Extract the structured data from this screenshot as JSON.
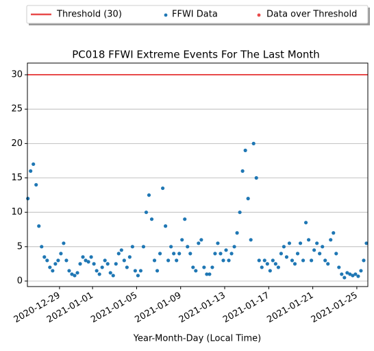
{
  "chart_data": {
    "type": "scatter",
    "title": "PC018 FFWI Extreme Events For The Last Month",
    "xlabel": "Year-Month-Day (Local Time)",
    "xlim": [
      "2020-12-26T02:00",
      "2021-01-26T00:00"
    ],
    "xticks": [
      "2020-12-29",
      "2021-01-01",
      "2021-01-05",
      "2021-01-09",
      "2021-01-13",
      "2021-01-17",
      "2021-01-21",
      "2021-01-25"
    ],
    "ylim": [
      -0.8,
      31.7
    ],
    "yticks": [
      0,
      5,
      10,
      15,
      20,
      25,
      30
    ],
    "grid": "y",
    "threshold": {
      "name": "Threshold (30)",
      "value": 30,
      "color": "#e84a4a"
    },
    "x": [
      "2020-12-26T03:00",
      "2020-12-26T09:00",
      "2020-12-26T15:00",
      "2020-12-26T21:00",
      "2020-12-27T03:00",
      "2020-12-27T09:00",
      "2020-12-27T15:00",
      "2020-12-27T21:00",
      "2020-12-28T03:00",
      "2020-12-28T09:00",
      "2020-12-28T15:00",
      "2020-12-28T21:00",
      "2020-12-29T03:00",
      "2020-12-29T09:00",
      "2020-12-29T15:00",
      "2020-12-29T21:00",
      "2020-12-30T03:00",
      "2020-12-30T09:00",
      "2020-12-30T15:00",
      "2020-12-30T21:00",
      "2020-12-31T03:00",
      "2020-12-31T09:00",
      "2020-12-31T15:00",
      "2020-12-31T21:00",
      "2021-01-01T03:00",
      "2021-01-01T09:00",
      "2021-01-01T15:00",
      "2021-01-01T21:00",
      "2021-01-02T03:00",
      "2021-01-02T09:00",
      "2021-01-02T15:00",
      "2021-01-02T21:00",
      "2021-01-03T03:00",
      "2021-01-03T09:00",
      "2021-01-03T15:00",
      "2021-01-03T21:00",
      "2021-01-04T03:00",
      "2021-01-04T09:00",
      "2021-01-04T15:00",
      "2021-01-04T21:00",
      "2021-01-05T03:00",
      "2021-01-05T09:00",
      "2021-01-05T15:00",
      "2021-01-05T21:00",
      "2021-01-06T03:00",
      "2021-01-06T09:00",
      "2021-01-06T15:00",
      "2021-01-06T21:00",
      "2021-01-07T03:00",
      "2021-01-07T09:00",
      "2021-01-07T15:00",
      "2021-01-07T21:00",
      "2021-01-08T03:00",
      "2021-01-08T09:00",
      "2021-01-08T15:00",
      "2021-01-08T21:00",
      "2021-01-09T03:00",
      "2021-01-09T09:00",
      "2021-01-09T15:00",
      "2021-01-09T21:00",
      "2021-01-10T03:00",
      "2021-01-10T09:00",
      "2021-01-10T15:00",
      "2021-01-10T21:00",
      "2021-01-11T03:00",
      "2021-01-11T09:00",
      "2021-01-11T15:00",
      "2021-01-11T21:00",
      "2021-01-12T03:00",
      "2021-01-12T09:00",
      "2021-01-12T15:00",
      "2021-01-12T21:00",
      "2021-01-13T03:00",
      "2021-01-13T09:00",
      "2021-01-13T15:00",
      "2021-01-13T21:00",
      "2021-01-14T03:00",
      "2021-01-14T09:00",
      "2021-01-14T15:00",
      "2021-01-14T21:00",
      "2021-01-15T03:00",
      "2021-01-15T09:00",
      "2021-01-15T15:00",
      "2021-01-15T21:00",
      "2021-01-16T03:00",
      "2021-01-16T09:00",
      "2021-01-16T15:00",
      "2021-01-16T21:00",
      "2021-01-17T03:00",
      "2021-01-17T09:00",
      "2021-01-17T15:00",
      "2021-01-17T21:00",
      "2021-01-18T03:00",
      "2021-01-18T09:00",
      "2021-01-18T15:00",
      "2021-01-18T21:00",
      "2021-01-19T03:00",
      "2021-01-19T09:00",
      "2021-01-19T15:00",
      "2021-01-19T21:00",
      "2021-01-20T03:00",
      "2021-01-20T09:00",
      "2021-01-20T15:00",
      "2021-01-20T21:00",
      "2021-01-21T03:00",
      "2021-01-21T09:00",
      "2021-01-21T15:00",
      "2021-01-21T21:00",
      "2021-01-22T03:00",
      "2021-01-22T09:00",
      "2021-01-22T15:00",
      "2021-01-22T21:00",
      "2021-01-23T03:00",
      "2021-01-23T09:00",
      "2021-01-23T15:00",
      "2021-01-23T21:00",
      "2021-01-24T03:00",
      "2021-01-24T09:00",
      "2021-01-24T15:00",
      "2021-01-24T21:00",
      "2021-01-25T03:00",
      "2021-01-25T09:00",
      "2021-01-25T15:00",
      "2021-01-25T21:00"
    ],
    "series": [
      {
        "name": "FFWI Data",
        "color": "#1f77b4",
        "values": [
          12,
          16,
          17,
          14,
          8,
          5,
          3.5,
          3,
          2,
          1.5,
          2.5,
          3,
          4,
          5.5,
          3,
          1.5,
          1,
          0.8,
          1.2,
          2.5,
          3.5,
          3,
          2.8,
          3.5,
          2.5,
          1.5,
          1,
          2,
          3,
          2.5,
          1.2,
          0.8,
          2.5,
          4,
          4.5,
          3,
          2,
          3.5,
          5,
          1.5,
          0.8,
          1.5,
          5,
          10,
          12.5,
          9,
          3,
          1.5,
          4,
          13.5,
          8,
          3,
          5,
          4,
          3,
          4,
          6,
          9,
          5,
          4,
          2,
          1.5,
          5.5,
          6,
          2,
          1,
          1,
          2,
          4,
          5.5,
          4,
          3,
          4.5,
          3,
          4,
          5,
          7,
          10,
          16,
          19,
          12,
          6,
          20,
          15,
          3,
          2,
          3,
          2.5,
          1.5,
          3,
          2.5,
          2,
          4,
          5,
          3.5,
          5.5,
          3,
          2.5,
          4,
          5.5,
          3,
          8.5,
          6,
          3,
          4.5,
          5.5,
          4,
          5,
          3,
          2.5,
          6,
          7,
          4,
          2,
          1,
          0.5,
          1.2,
          1,
          0.8,
          1,
          0.7,
          1.5,
          3,
          5.5
        ]
      },
      {
        "name": "Data over Threshold",
        "color": "#e84a4a",
        "values": []
      }
    ]
  }
}
